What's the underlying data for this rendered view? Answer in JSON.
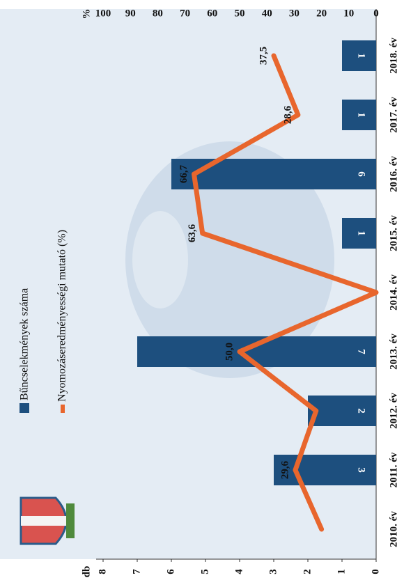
{
  "chart_data": {
    "type": "bar",
    "categories": [
      "2010. év",
      "2011. év",
      "2012. év",
      "2013. év",
      "2014. év",
      "2015. év",
      "2016. év",
      "2017. év",
      "2018. év"
    ],
    "y_label": "db",
    "y2_label": "%",
    "ylim": [
      0,
      8
    ],
    "yticks": [
      0,
      1,
      2,
      3,
      4,
      5,
      6,
      7,
      8
    ],
    "y2lim": [
      0,
      100
    ],
    "y2ticks": [
      0,
      10,
      20,
      30,
      40,
      50,
      60,
      70,
      80,
      90,
      100
    ],
    "series": [
      {
        "name": "Bűncselekmények száma",
        "color": "#1d4f7e",
        "values": [
          null,
          3,
          2,
          7,
          null,
          1,
          6,
          1,
          1
        ]
      },
      {
        "name": "Nyomozáseredményességi mutató (%)",
        "color": "#e8662d",
        "axis": "y2",
        "values": [
          20,
          29.6,
          22,
          50,
          0,
          63.6,
          66.7,
          28.6,
          37.5
        ],
        "value_labels": [
          null,
          "29,6",
          null,
          "50,0",
          null,
          "63,6",
          "66,7",
          "28,6",
          "37,5"
        ]
      }
    ]
  }
}
